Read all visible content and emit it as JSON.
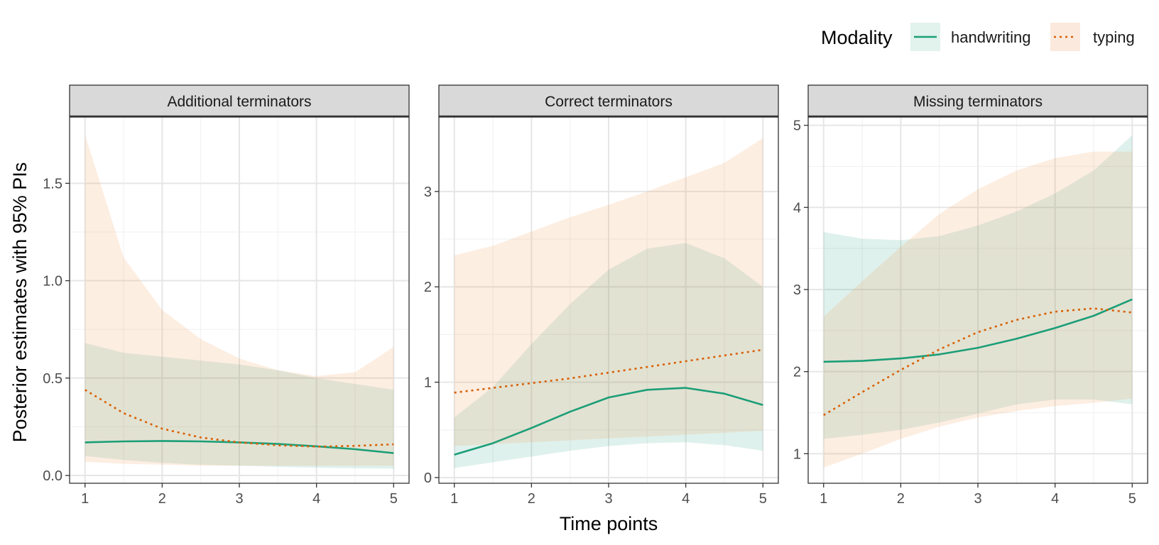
{
  "chart_data": {
    "type": "line",
    "ylabel": "Posterior estimates with 95% PIs",
    "xlabel": "Time points",
    "x_ticks": [
      1,
      2,
      3,
      4,
      5
    ],
    "legend": {
      "title": "Modality",
      "position": "top-right",
      "entries": [
        {
          "name": "handwriting",
          "color": "#1b9e77",
          "fill": "#d7efe8",
          "linestyle": "solid"
        },
        {
          "name": "typing",
          "color": "#d95f02",
          "fill": "#f9e0cf",
          "linestyle": "dotted"
        }
      ]
    },
    "panels": [
      {
        "title": "Additional terminators",
        "ylim": [
          -0.04,
          1.84
        ],
        "y_ticks": [
          0.0,
          0.5,
          1.0,
          1.5
        ],
        "y_tick_labels": [
          "0.0",
          "0.5",
          "1.0",
          "1.5"
        ],
        "series": [
          {
            "name": "handwriting",
            "x": [
              1,
              1.5,
              2,
              2.5,
              3,
              3.5,
              4,
              4.5,
              5
            ],
            "y": [
              0.17,
              0.175,
              0.177,
              0.175,
              0.17,
              0.162,
              0.15,
              0.135,
              0.115
            ],
            "lower": [
              0.1,
              0.08,
              0.065,
              0.055,
              0.05,
              0.045,
              0.04,
              0.037,
              0.035
            ],
            "upper": [
              0.68,
              0.63,
              0.61,
              0.59,
              0.57,
              0.54,
              0.5,
              0.47,
              0.44
            ]
          },
          {
            "name": "typing",
            "x": [
              1,
              1.5,
              2,
              2.5,
              3,
              3.5,
              4,
              4.5,
              5
            ],
            "y": [
              0.44,
              0.32,
              0.24,
              0.195,
              0.17,
              0.155,
              0.148,
              0.152,
              0.16
            ],
            "lower": [
              0.07,
              0.06,
              0.055,
              0.05,
              0.05,
              0.05,
              0.05,
              0.05,
              0.05
            ],
            "upper": [
              1.75,
              1.12,
              0.85,
              0.7,
              0.6,
              0.54,
              0.51,
              0.53,
              0.66
            ]
          }
        ]
      },
      {
        "title": "Correct terminators",
        "ylim": [
          -0.06,
          3.78
        ],
        "y_ticks": [
          0,
          1,
          2,
          3
        ],
        "y_tick_labels": [
          "0",
          "1",
          "2",
          "3"
        ],
        "series": [
          {
            "name": "handwriting",
            "x": [
              1,
              1.5,
              2,
              2.5,
              3,
              3.5,
              4,
              4.5,
              5
            ],
            "y": [
              0.24,
              0.36,
              0.52,
              0.69,
              0.84,
              0.92,
              0.94,
              0.88,
              0.76
            ],
            "lower": [
              0.1,
              0.16,
              0.22,
              0.28,
              0.33,
              0.36,
              0.37,
              0.34,
              0.28
            ],
            "upper": [
              0.63,
              0.95,
              1.4,
              1.82,
              2.18,
              2.4,
              2.46,
              2.3,
              2.0
            ]
          },
          {
            "name": "typing",
            "x": [
              1,
              1.5,
              2,
              2.5,
              3,
              3.5,
              4,
              4.5,
              5
            ],
            "y": [
              0.89,
              0.94,
              0.99,
              1.04,
              1.1,
              1.16,
              1.22,
              1.28,
              1.34
            ],
            "lower": [
              0.33,
              0.35,
              0.37,
              0.39,
              0.41,
              0.43,
              0.45,
              0.47,
              0.49
            ],
            "upper": [
              2.33,
              2.43,
              2.58,
              2.73,
              2.86,
              3.0,
              3.15,
              3.3,
              3.56
            ]
          }
        ]
      },
      {
        "title": "Missing terminators",
        "ylim": [
          0.64,
          5.1
        ],
        "y_ticks": [
          1,
          2,
          3,
          4,
          5
        ],
        "y_tick_labels": [
          "1",
          "2",
          "3",
          "4",
          "5"
        ],
        "series": [
          {
            "name": "handwriting",
            "x": [
              1,
              1.5,
              2,
              2.5,
              3,
              3.5,
              4,
              4.5,
              5
            ],
            "y": [
              2.12,
              2.13,
              2.16,
              2.21,
              2.29,
              2.4,
              2.53,
              2.68,
              2.88
            ],
            "lower": [
              1.18,
              1.23,
              1.29,
              1.38,
              1.49,
              1.6,
              1.66,
              1.66,
              1.6
            ],
            "upper": [
              3.7,
              3.62,
              3.6,
              3.65,
              3.78,
              3.95,
              4.17,
              4.45,
              4.88
            ]
          },
          {
            "name": "typing",
            "x": [
              1,
              1.5,
              2,
              2.5,
              3,
              3.5,
              4,
              4.5,
              5
            ],
            "y": [
              1.47,
              1.75,
              2.02,
              2.27,
              2.48,
              2.63,
              2.73,
              2.77,
              2.72
            ],
            "lower": [
              0.83,
              1.0,
              1.18,
              1.33,
              1.44,
              1.52,
              1.58,
              1.62,
              1.67
            ],
            "upper": [
              2.67,
              3.1,
              3.52,
              3.92,
              4.22,
              4.45,
              4.6,
              4.68,
              4.68
            ]
          }
        ]
      }
    ]
  }
}
